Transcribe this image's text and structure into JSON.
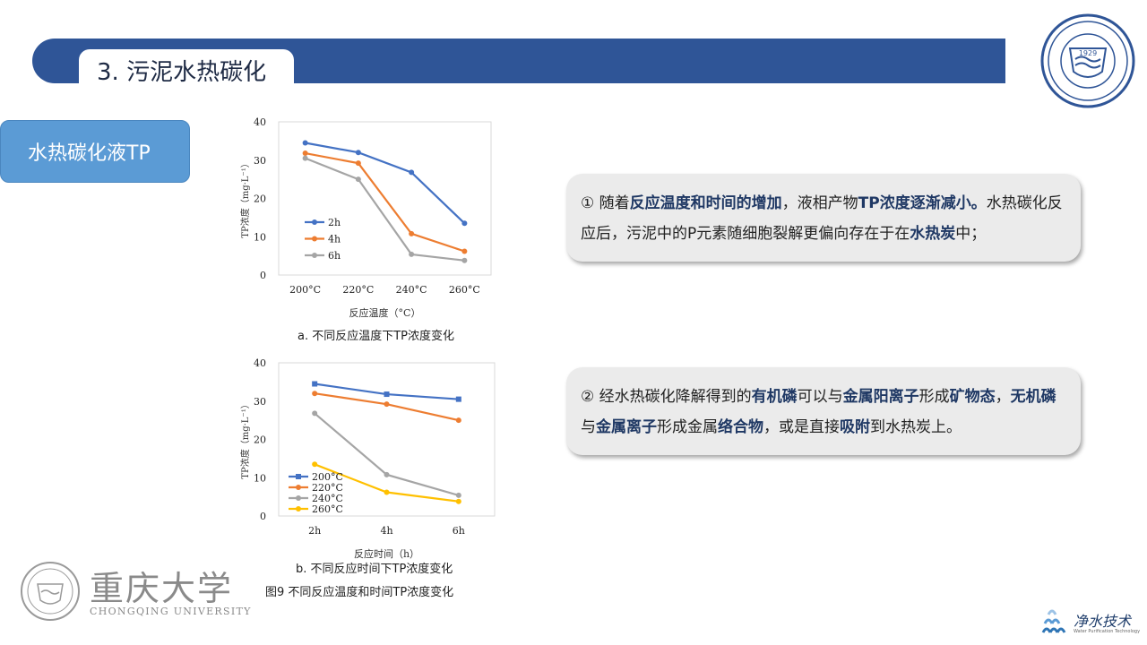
{
  "header": {
    "title": "3. 污泥水热碳化"
  },
  "side_button": {
    "label": "水热碳化液TP"
  },
  "charts": {
    "a": {
      "caption": "a. 不同反应温度下TP浓度变化"
    },
    "b": {
      "caption": "b. 不同反应时间下TP浓度变化"
    }
  },
  "figure_caption": "图9  不同反应温度和时间TP浓度变化",
  "callout1": {
    "segments": [
      {
        "t": "① 随着",
        "b": false
      },
      {
        "t": "反应温度和时间的增加",
        "b": true
      },
      {
        "t": "，液相产物",
        "b": false
      },
      {
        "t": "TP浓度逐渐减小。",
        "b": true
      },
      {
        "t": "水热碳化反应后，污泥中的P元素随细胞裂解更偏向存在于在",
        "b": false
      },
      {
        "t": "水热炭",
        "b": true
      },
      {
        "t": "中；",
        "b": false
      }
    ]
  },
  "callout2": {
    "segments": [
      {
        "t": "② 经水热碳化降解得到的",
        "b": false
      },
      {
        "t": "有机磷",
        "b": true
      },
      {
        "t": "可以与",
        "b": false
      },
      {
        "t": "金属阳离子",
        "b": true
      },
      {
        "t": "形成",
        "b": false
      },
      {
        "t": "矿物态",
        "b": true
      },
      {
        "t": "，",
        "b": false
      },
      {
        "t": "无机磷",
        "b": true
      },
      {
        "t": "与",
        "b": false
      },
      {
        "t": "金属离子",
        "b": true
      },
      {
        "t": "形成金属",
        "b": false
      },
      {
        "t": "络合物",
        "b": true
      },
      {
        "t": "，或是直接",
        "b": false
      },
      {
        "t": "吸附",
        "b": true
      },
      {
        "t": "到水热炭上。",
        "b": false
      }
    ]
  },
  "university": {
    "cn": "重庆大学",
    "en": "CHONGQING UNIVERSITY",
    "year": "1929"
  },
  "brand": {
    "name": "净水技术",
    "sub": "Water Purification Technology"
  },
  "colors": {
    "header": "#2f5597",
    "side_button": "#5b9bd5",
    "blue": "#4472c4",
    "orange": "#ed7d31",
    "gray": "#a5a5a5",
    "yellow": "#ffc000"
  },
  "chart_data": [
    {
      "type": "line",
      "categories": [
        "200°C",
        "220°C",
        "240°C",
        "260°C"
      ],
      "series": [
        {
          "name": "2h",
          "values": [
            34.5,
            32.0,
            26.8,
            13.5
          ],
          "color": "#4472c4",
          "marker": "circle"
        },
        {
          "name": "4h",
          "values": [
            31.8,
            29.2,
            10.8,
            6.2
          ],
          "color": "#ed7d31",
          "marker": "circle"
        },
        {
          "name": "6h",
          "values": [
            30.5,
            25.0,
            5.4,
            3.8
          ],
          "color": "#a5a5a5",
          "marker": "circle"
        }
      ],
      "xlabel": "反应温度（°C）",
      "ylabel": "TP浓度（mg·L⁻¹）",
      "ylim": [
        0,
        40
      ],
      "yticks": [
        0,
        10,
        20,
        30,
        40
      ],
      "grid": false,
      "legend": "middle-left"
    },
    {
      "type": "line",
      "categories": [
        "2h",
        "4h",
        "6h"
      ],
      "series": [
        {
          "name": "200°C",
          "values": [
            34.5,
            31.8,
            30.5
          ],
          "color": "#4472c4",
          "marker": "square"
        },
        {
          "name": "220°C",
          "values": [
            32.0,
            29.2,
            25.0
          ],
          "color": "#ed7d31",
          "marker": "circle"
        },
        {
          "name": "240°C",
          "values": [
            26.8,
            10.8,
            5.4
          ],
          "color": "#a5a5a5",
          "marker": "circle"
        },
        {
          "name": "260°C",
          "values": [
            13.5,
            6.2,
            3.8
          ],
          "color": "#ffc000",
          "marker": "circle"
        }
      ],
      "xlabel": "反应时间（h）",
      "ylabel": "TP浓度（mg·L⁻¹）",
      "ylim": [
        0,
        40
      ],
      "yticks": [
        0,
        10,
        20,
        30,
        40
      ],
      "grid": false,
      "legend": "bottom-left"
    }
  ]
}
